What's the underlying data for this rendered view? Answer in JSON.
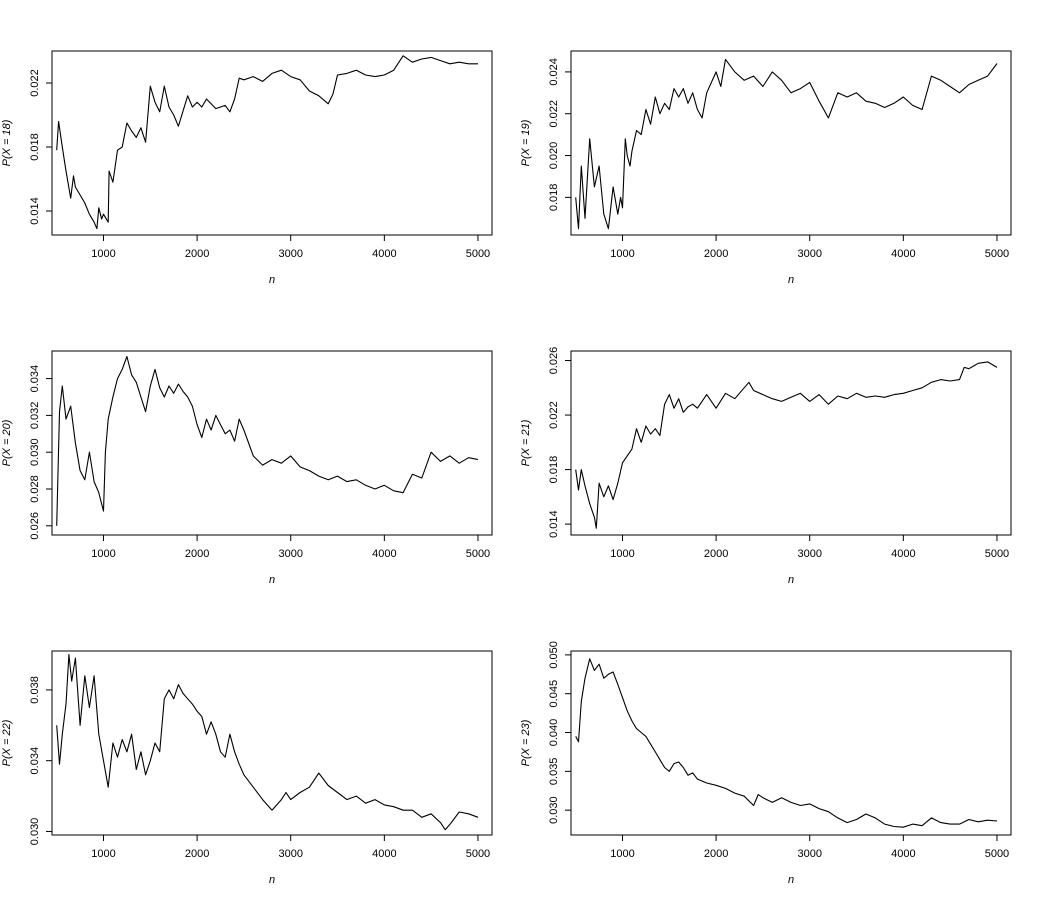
{
  "chart_data": [
    {
      "type": "line",
      "xlabel": "n",
      "ylabel": "P(X = 18)",
      "xlim": [
        450,
        5150
      ],
      "ylim": [
        0.0125,
        0.024
      ],
      "xticks": [
        1000,
        2000,
        3000,
        4000,
        5000
      ],
      "yticks": [
        0.014,
        0.018,
        0.022
      ],
      "ytick_labels": [
        "0.014",
        "0.018",
        "0.022"
      ],
      "grid": false,
      "series": [
        {
          "x": [
            500,
            520,
            560,
            600,
            650,
            680,
            700,
            750,
            800,
            850,
            900,
            930,
            950,
            980,
            1000,
            1050,
            1060,
            1100,
            1150,
            1200,
            1250,
            1300,
            1350,
            1400,
            1450,
            1500,
            1550,
            1600,
            1650,
            1700,
            1750,
            1800,
            1900,
            1950,
            2000,
            2050,
            2100,
            2200,
            2300,
            2350,
            2400,
            2450,
            2500,
            2600,
            2700,
            2800,
            2900,
            3000,
            3100,
            3200,
            3300,
            3400,
            3450,
            3500,
            3600,
            3700,
            3800,
            3900,
            4000,
            4100,
            4200,
            4300,
            4400,
            4500,
            4600,
            4700,
            4800,
            4900,
            5000
          ],
          "y": [
            0.0178,
            0.0196,
            0.018,
            0.0165,
            0.0148,
            0.0162,
            0.0155,
            0.015,
            0.0145,
            0.0138,
            0.0133,
            0.0129,
            0.0142,
            0.0135,
            0.0138,
            0.0133,
            0.0165,
            0.0158,
            0.0178,
            0.018,
            0.0195,
            0.019,
            0.0186,
            0.0192,
            0.0183,
            0.0218,
            0.0208,
            0.0202,
            0.0218,
            0.0205,
            0.02,
            0.0193,
            0.0212,
            0.0205,
            0.0208,
            0.0205,
            0.021,
            0.0204,
            0.0206,
            0.0202,
            0.021,
            0.0223,
            0.0222,
            0.0224,
            0.0221,
            0.0226,
            0.0228,
            0.0224,
            0.0222,
            0.0215,
            0.0212,
            0.0207,
            0.0213,
            0.0225,
            0.0226,
            0.0228,
            0.0225,
            0.0224,
            0.0225,
            0.0228,
            0.0237,
            0.0233,
            0.0235,
            0.0236,
            0.0234,
            0.0232,
            0.0233,
            0.0232,
            0.0232
          ]
        }
      ]
    },
    {
      "type": "line",
      "xlabel": "n",
      "ylabel": "P(X = 19)",
      "xlim": [
        450,
        5150
      ],
      "ylim": [
        0.0162,
        0.025
      ],
      "xticks": [
        1000,
        2000,
        3000,
        4000,
        5000
      ],
      "yticks": [
        0.018,
        0.02,
        0.022,
        0.024
      ],
      "ytick_labels": [
        "0.018",
        "0.020",
        "0.022",
        "0.024"
      ],
      "grid": false,
      "series": [
        {
          "x": [
            500,
            530,
            560,
            600,
            650,
            700,
            750,
            800,
            850,
            900,
            950,
            980,
            1000,
            1030,
            1050,
            1080,
            1100,
            1150,
            1200,
            1250,
            1300,
            1350,
            1400,
            1450,
            1500,
            1550,
            1600,
            1650,
            1700,
            1750,
            1800,
            1850,
            1900,
            1950,
            2000,
            2050,
            2100,
            2200,
            2300,
            2400,
            2500,
            2600,
            2700,
            2800,
            2900,
            3000,
            3100,
            3200,
            3300,
            3400,
            3500,
            3600,
            3700,
            3800,
            3900,
            4000,
            4100,
            4200,
            4300,
            4400,
            4500,
            4600,
            4700,
            4800,
            4900,
            5000
          ],
          "y": [
            0.018,
            0.0165,
            0.0195,
            0.017,
            0.0208,
            0.0185,
            0.0195,
            0.0172,
            0.0165,
            0.0185,
            0.0172,
            0.018,
            0.0175,
            0.0208,
            0.02,
            0.0195,
            0.0202,
            0.0212,
            0.021,
            0.0222,
            0.0215,
            0.0228,
            0.022,
            0.0225,
            0.0222,
            0.0232,
            0.0228,
            0.0232,
            0.0225,
            0.023,
            0.0222,
            0.0218,
            0.023,
            0.0235,
            0.024,
            0.0233,
            0.0246,
            0.024,
            0.0236,
            0.0238,
            0.0233,
            0.024,
            0.0236,
            0.023,
            0.0232,
            0.0235,
            0.0226,
            0.0218,
            0.023,
            0.0228,
            0.023,
            0.0226,
            0.0225,
            0.0223,
            0.0225,
            0.0228,
            0.0224,
            0.0222,
            0.0238,
            0.0236,
            0.0233,
            0.023,
            0.0234,
            0.0236,
            0.0238,
            0.0244
          ]
        }
      ]
    },
    {
      "type": "line",
      "xlabel": "n",
      "ylabel": "P(X = 20)",
      "xlim": [
        450,
        5150
      ],
      "ylim": [
        0.0255,
        0.0355
      ],
      "xticks": [
        1000,
        2000,
        3000,
        4000,
        5000
      ],
      "yticks": [
        0.026,
        0.028,
        0.03,
        0.032,
        0.034
      ],
      "ytick_labels": [
        "0.026",
        "0.028",
        "0.030",
        "0.032",
        "0.034"
      ],
      "grid": false,
      "series": [
        {
          "x": [
            500,
            510,
            530,
            560,
            600,
            650,
            700,
            750,
            800,
            850,
            900,
            950,
            980,
            1000,
            1020,
            1050,
            1100,
            1150,
            1200,
            1250,
            1300,
            1350,
            1400,
            1450,
            1500,
            1550,
            1600,
            1650,
            1700,
            1750,
            1800,
            1850,
            1900,
            1950,
            2000,
            2050,
            2100,
            2150,
            2200,
            2250,
            2300,
            2350,
            2400,
            2450,
            2500,
            2550,
            2600,
            2700,
            2800,
            2900,
            3000,
            3100,
            3200,
            3300,
            3400,
            3500,
            3600,
            3700,
            3800,
            3900,
            4000,
            4100,
            4200,
            4300,
            4400,
            4500,
            4600,
            4700,
            4800,
            4900,
            5000
          ],
          "y": [
            0.026,
            0.028,
            0.0322,
            0.0336,
            0.0318,
            0.0325,
            0.0305,
            0.029,
            0.0285,
            0.03,
            0.0284,
            0.0278,
            0.0272,
            0.0268,
            0.03,
            0.0318,
            0.033,
            0.034,
            0.0345,
            0.0352,
            0.0342,
            0.0338,
            0.033,
            0.0322,
            0.0336,
            0.0345,
            0.0335,
            0.033,
            0.0336,
            0.0332,
            0.0337,
            0.0333,
            0.033,
            0.0325,
            0.0315,
            0.0308,
            0.0318,
            0.0312,
            0.032,
            0.0315,
            0.031,
            0.0312,
            0.0306,
            0.0318,
            0.0312,
            0.0305,
            0.0298,
            0.0293,
            0.0296,
            0.0294,
            0.0298,
            0.0292,
            0.029,
            0.0287,
            0.0285,
            0.0287,
            0.0284,
            0.0285,
            0.0282,
            0.028,
            0.0282,
            0.0279,
            0.0278,
            0.0288,
            0.0286,
            0.03,
            0.0295,
            0.0298,
            0.0294,
            0.0297,
            0.0296
          ]
        }
      ]
    },
    {
      "type": "line",
      "xlabel": "n",
      "ylabel": "P(X = 21)",
      "xlim": [
        450,
        5150
      ],
      "ylim": [
        0.0132,
        0.0267
      ],
      "xticks": [
        1000,
        2000,
        3000,
        4000,
        5000
      ],
      "yticks": [
        0.014,
        0.018,
        0.022,
        0.026
      ],
      "ytick_labels": [
        "0.014",
        "0.018",
        "0.022",
        "0.026"
      ],
      "grid": false,
      "series": [
        {
          "x": [
            500,
            530,
            560,
            600,
            650,
            700,
            720,
            750,
            800,
            850,
            900,
            950,
            1000,
            1050,
            1100,
            1150,
            1200,
            1250,
            1300,
            1350,
            1400,
            1450,
            1500,
            1550,
            1600,
            1650,
            1700,
            1750,
            1800,
            1900,
            1950,
            2000,
            2100,
            2200,
            2300,
            2350,
            2400,
            2500,
            2600,
            2700,
            2800,
            2900,
            3000,
            3100,
            3200,
            3300,
            3400,
            3500,
            3600,
            3700,
            3800,
            3900,
            4000,
            4100,
            4200,
            4300,
            4400,
            4500,
            4600,
            4650,
            4700,
            4750,
            4800,
            4900,
            5000
          ],
          "y": [
            0.018,
            0.0165,
            0.018,
            0.0168,
            0.0155,
            0.0145,
            0.0137,
            0.017,
            0.016,
            0.0168,
            0.0158,
            0.017,
            0.0185,
            0.019,
            0.0195,
            0.021,
            0.02,
            0.0212,
            0.0206,
            0.021,
            0.0205,
            0.0228,
            0.0235,
            0.0225,
            0.0232,
            0.0222,
            0.0226,
            0.0228,
            0.0225,
            0.0235,
            0.023,
            0.0225,
            0.0236,
            0.0232,
            0.024,
            0.0244,
            0.0238,
            0.0235,
            0.0232,
            0.023,
            0.0233,
            0.0236,
            0.023,
            0.0235,
            0.0228,
            0.0234,
            0.0232,
            0.0236,
            0.0233,
            0.0234,
            0.0233,
            0.0235,
            0.0236,
            0.0238,
            0.024,
            0.0244,
            0.0246,
            0.0245,
            0.0246,
            0.0255,
            0.0254,
            0.0256,
            0.0258,
            0.0259,
            0.0255
          ]
        }
      ]
    },
    {
      "type": "line",
      "xlabel": "n",
      "ylabel": "P(X = 22)",
      "xlim": [
        450,
        5150
      ],
      "ylim": [
        0.0298,
        0.0402
      ],
      "xticks": [
        1000,
        2000,
        3000,
        4000,
        5000
      ],
      "yticks": [
        0.03,
        0.034,
        0.038
      ],
      "ytick_labels": [
        "0.030",
        "0.034",
        "0.038"
      ],
      "grid": false,
      "series": [
        {
          "x": [
            500,
            530,
            560,
            600,
            630,
            660,
            700,
            750,
            800,
            850,
            900,
            950,
            1000,
            1050,
            1100,
            1150,
            1200,
            1250,
            1300,
            1350,
            1400,
            1450,
            1500,
            1550,
            1600,
            1650,
            1700,
            1750,
            1800,
            1850,
            1900,
            1950,
            2000,
            2050,
            2100,
            2150,
            2200,
            2250,
            2300,
            2350,
            2400,
            2450,
            2500,
            2600,
            2700,
            2800,
            2900,
            2950,
            3000,
            3100,
            3200,
            3300,
            3400,
            3500,
            3600,
            3700,
            3800,
            3900,
            4000,
            4100,
            4200,
            4300,
            4400,
            4500,
            4600,
            4650,
            4700,
            4800,
            4900,
            5000
          ],
          "y": [
            0.036,
            0.0338,
            0.0355,
            0.0372,
            0.04,
            0.0385,
            0.0398,
            0.036,
            0.0388,
            0.037,
            0.0388,
            0.0355,
            0.034,
            0.0325,
            0.035,
            0.0342,
            0.0352,
            0.0345,
            0.0355,
            0.0335,
            0.0345,
            0.0332,
            0.034,
            0.035,
            0.0345,
            0.0375,
            0.038,
            0.0375,
            0.0383,
            0.0378,
            0.0375,
            0.0372,
            0.0368,
            0.0365,
            0.0355,
            0.0362,
            0.0355,
            0.0345,
            0.0342,
            0.0355,
            0.0345,
            0.0338,
            0.0332,
            0.0325,
            0.0318,
            0.0312,
            0.0318,
            0.0322,
            0.0318,
            0.0322,
            0.0325,
            0.0333,
            0.0326,
            0.0322,
            0.0318,
            0.032,
            0.0316,
            0.0318,
            0.0315,
            0.0314,
            0.0312,
            0.0312,
            0.0308,
            0.031,
            0.0305,
            0.0301,
            0.0304,
            0.0311,
            0.031,
            0.0308
          ]
        }
      ]
    },
    {
      "type": "line",
      "xlabel": "n",
      "ylabel": "P(X = 23)",
      "xlim": [
        450,
        5150
      ],
      "ylim": [
        0.0268,
        0.0505
      ],
      "xticks": [
        1000,
        2000,
        3000,
        4000,
        5000
      ],
      "yticks": [
        0.03,
        0.035,
        0.04,
        0.045,
        0.05
      ],
      "ytick_labels": [
        "0.030",
        "0.035",
        "0.040",
        "0.045",
        "0.050"
      ],
      "grid": false,
      "series": [
        {
          "x": [
            500,
            530,
            560,
            600,
            650,
            700,
            750,
            800,
            850,
            900,
            950,
            1000,
            1050,
            1100,
            1150,
            1200,
            1250,
            1300,
            1350,
            1400,
            1450,
            1500,
            1550,
            1600,
            1650,
            1700,
            1750,
            1800,
            1900,
            2000,
            2100,
            2200,
            2300,
            2400,
            2450,
            2500,
            2600,
            2700,
            2800,
            2900,
            3000,
            3100,
            3200,
            3300,
            3400,
            3500,
            3600,
            3700,
            3800,
            3900,
            4000,
            4100,
            4200,
            4300,
            4400,
            4500,
            4600,
            4700,
            4800,
            4900,
            5000
          ],
          "y": [
            0.0395,
            0.0388,
            0.044,
            0.047,
            0.0495,
            0.048,
            0.0488,
            0.047,
            0.0475,
            0.0478,
            0.0462,
            0.0445,
            0.0428,
            0.0415,
            0.0405,
            0.04,
            0.0395,
            0.0385,
            0.0375,
            0.0365,
            0.0355,
            0.035,
            0.036,
            0.0362,
            0.0355,
            0.0345,
            0.0348,
            0.034,
            0.0335,
            0.0332,
            0.0328,
            0.0322,
            0.0318,
            0.0306,
            0.032,
            0.0316,
            0.031,
            0.0316,
            0.031,
            0.0306,
            0.0308,
            0.0302,
            0.0298,
            0.029,
            0.0284,
            0.0288,
            0.0295,
            0.029,
            0.0282,
            0.0279,
            0.0278,
            0.0282,
            0.028,
            0.029,
            0.0284,
            0.0282,
            0.0282,
            0.0288,
            0.0285,
            0.0287,
            0.0286
          ]
        }
      ]
    }
  ]
}
